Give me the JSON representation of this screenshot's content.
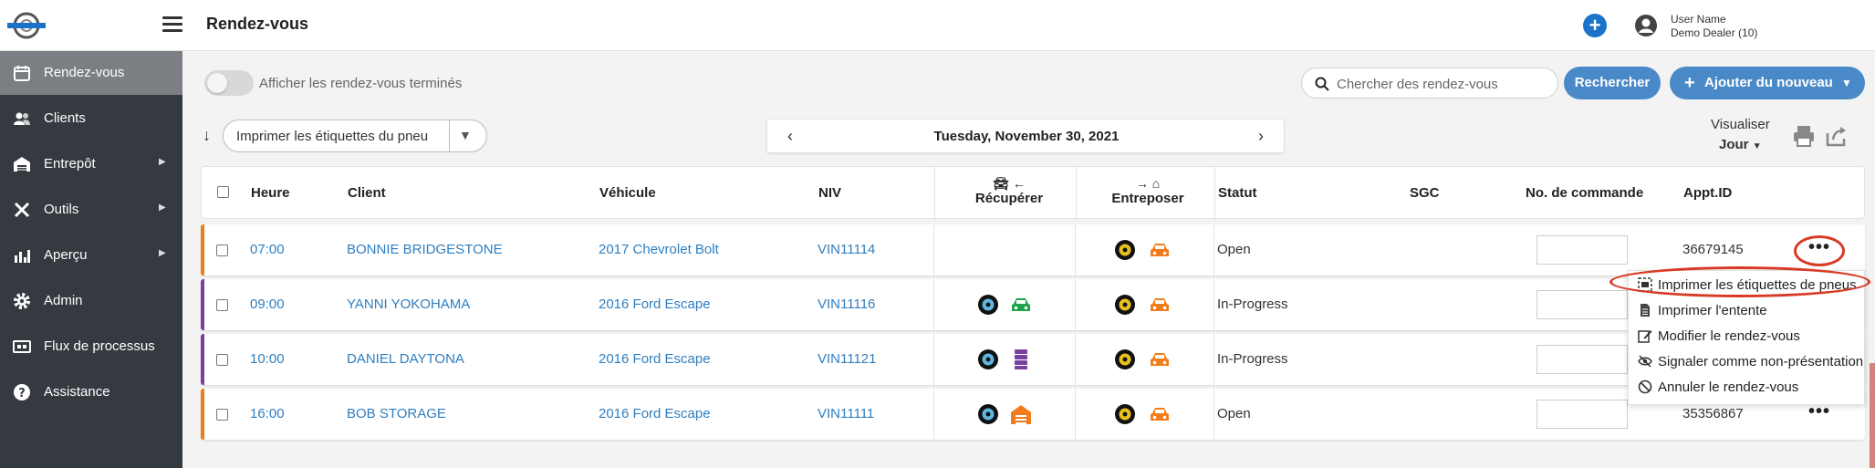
{
  "header": {
    "title": "Rendez-vous",
    "user": {
      "name": "User Name",
      "dealer": "Demo Dealer (10)"
    }
  },
  "sidebar": {
    "items": [
      {
        "label": "Rendez-vous",
        "icon": "calendar-icon",
        "active": true
      },
      {
        "label": "Clients",
        "icon": "users-icon"
      },
      {
        "label": "Entrepôt",
        "icon": "warehouse-icon",
        "submenu": true
      },
      {
        "label": "Outils",
        "icon": "tools-icon",
        "submenu": true
      },
      {
        "label": "Aperçu",
        "icon": "chart-icon",
        "submenu": true
      },
      {
        "label": "Admin",
        "icon": "gear-icon"
      },
      {
        "label": "Flux de processus",
        "icon": "flow-icon"
      },
      {
        "label": "Assistance",
        "icon": "help-icon"
      }
    ]
  },
  "filters": {
    "toggle_label": "Afficher les rendez-vous terminés",
    "search_placeholder": "Chercher des rendez-vous",
    "search_button": "Rechercher",
    "add_button": "Ajouter du nouveau"
  },
  "toolbar": {
    "print_dropdown": "Imprimer les étiquettes du pneu",
    "date": "Tuesday, November 30, 2021",
    "view_label": "Visualiser",
    "view_value": "Jour"
  },
  "table": {
    "headers": {
      "time": "Heure",
      "client": "Client",
      "vehicle": "Véhicule",
      "vin": "NIV",
      "pickup": "Récupérer",
      "store": "Entreposer",
      "status": "Statut",
      "sgc": "SGC",
      "order": "No. de commande",
      "appt": "Appt.ID"
    },
    "rows": [
      {
        "time": "07:00",
        "client": "BONNIE BRIDGESTONE",
        "vehicle": "2017 Chevrolet Bolt",
        "vin": "VIN11114",
        "status": "Open",
        "appt": "36679145",
        "accent": "#f07c1b"
      },
      {
        "time": "09:00",
        "client": "YANNI YOKOHAMA",
        "vehicle": "2016 Ford Escape",
        "vin": "VIN11116",
        "status": "In-Progress",
        "appt": "",
        "accent": "#7b3fa0"
      },
      {
        "time": "10:00",
        "client": "DANIEL DAYTONA",
        "vehicle": "2016 Ford Escape",
        "vin": "VIN11121",
        "status": "In-Progress",
        "appt": "",
        "accent": "#7b3fa0"
      },
      {
        "time": "16:00",
        "client": "BOB STORAGE",
        "vehicle": "2016 Ford Escape",
        "vin": "VIN11111",
        "status": "Open",
        "appt": "35356867",
        "accent": "#f07c1b"
      }
    ]
  },
  "context_menu": {
    "items": [
      {
        "label": "Imprimer les étiquettes de pneus",
        "icon": "label-print-icon"
      },
      {
        "label": "Imprimer l'entente",
        "icon": "document-icon"
      },
      {
        "label": "Modifier le rendez-vous",
        "icon": "edit-icon"
      },
      {
        "label": "Signaler comme non-présentation",
        "icon": "eye-slash-icon"
      },
      {
        "label": "Annuler le rendez-vous",
        "icon": "ban-icon"
      }
    ]
  },
  "colors": {
    "primary": "#4a89c8",
    "link": "#2f7ec0",
    "sidebar": "#343a40",
    "annotation": "#d93a26",
    "car_green": "#1aa34a",
    "car_orange": "#f07c1b",
    "purple": "#7b3fa0"
  }
}
